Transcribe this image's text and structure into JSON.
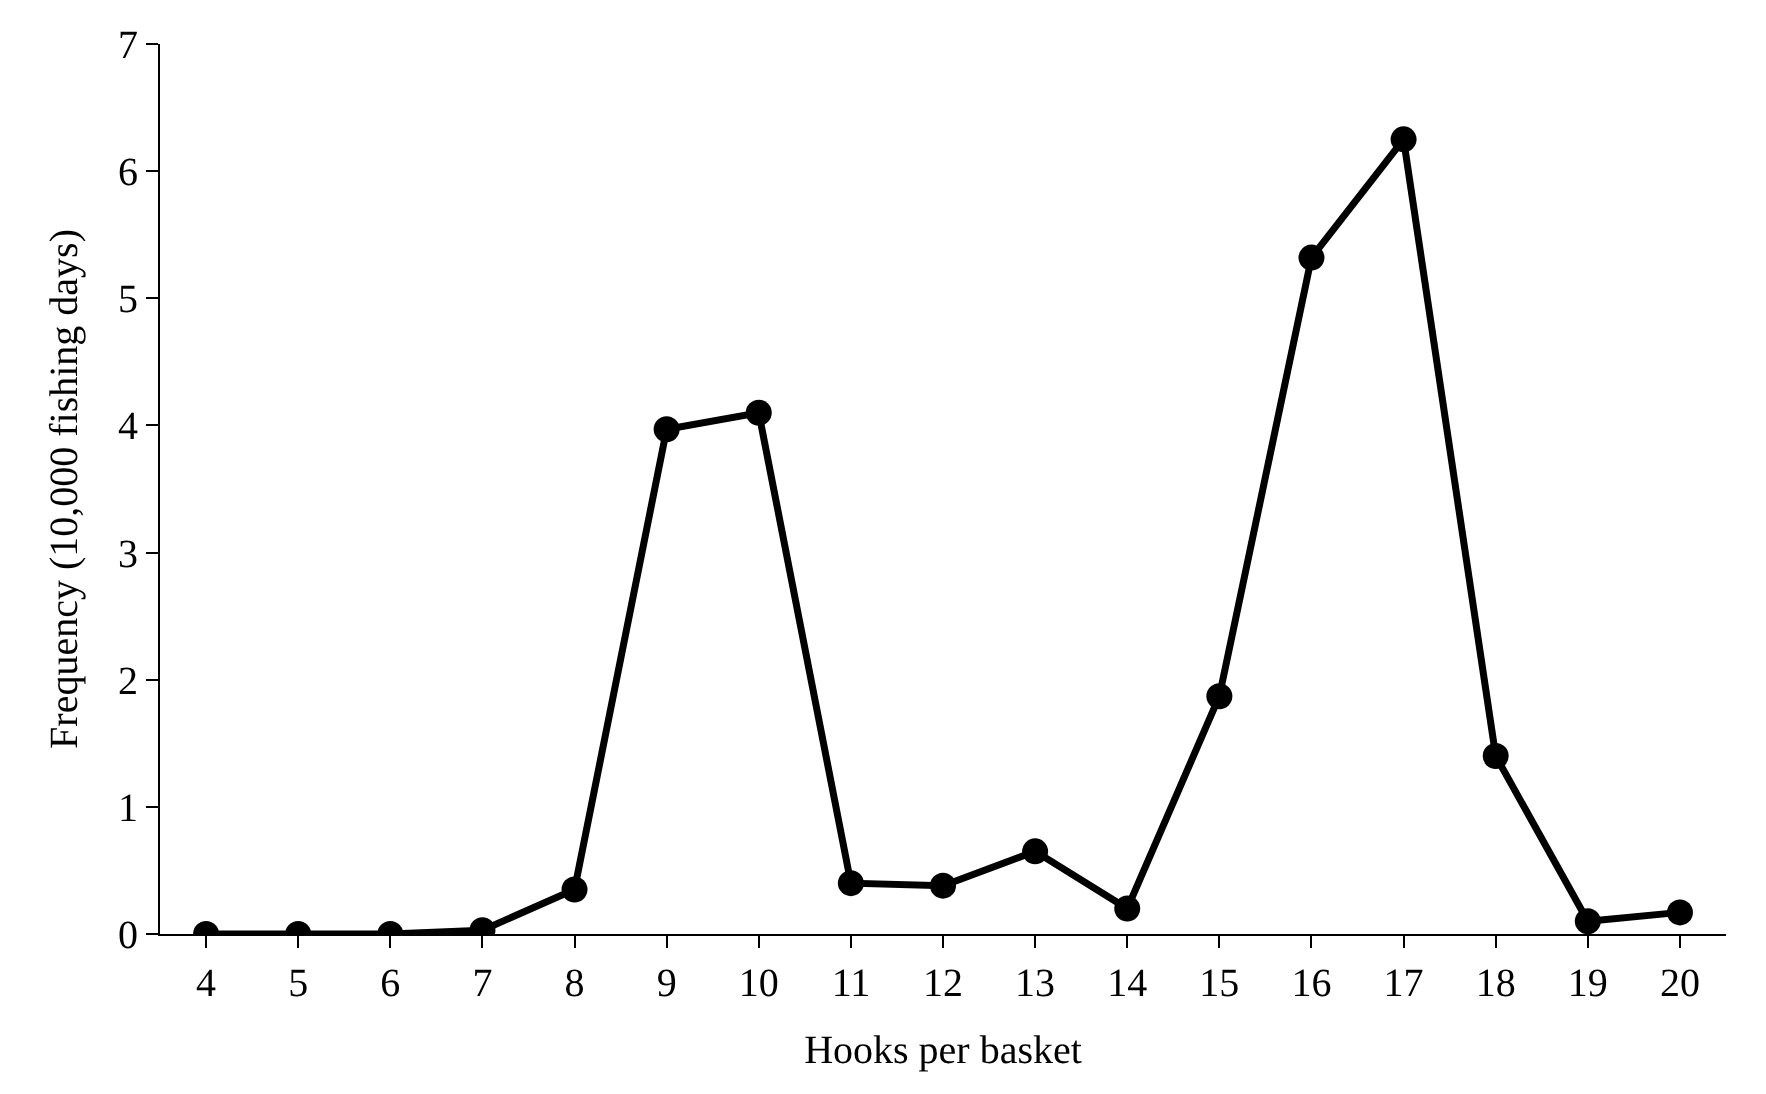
{
  "chart_data": {
    "type": "line",
    "xlabel": "Hooks per basket",
    "ylabel": "Frequency (10,000 fishing days)",
    "categories": [
      "4",
      "5",
      "6",
      "7",
      "8",
      "9",
      "10",
      "11",
      "12",
      "13",
      "14",
      "15",
      "16",
      "17",
      "18",
      "19",
      "20"
    ],
    "series": [
      {
        "color": "#000000",
        "values": [
          0,
          0,
          0,
          0.03,
          0.35,
          3.97,
          4.1,
          0.4,
          0.38,
          0.65,
          0.2,
          1.87,
          5.32,
          6.25,
          1.4,
          0.1,
          0.17
        ]
      }
    ],
    "ylim": [
      0,
      7
    ],
    "yticks": [
      0,
      1,
      2,
      3,
      4,
      5,
      6,
      7
    ],
    "marker": "circle",
    "line_style": "solid"
  }
}
